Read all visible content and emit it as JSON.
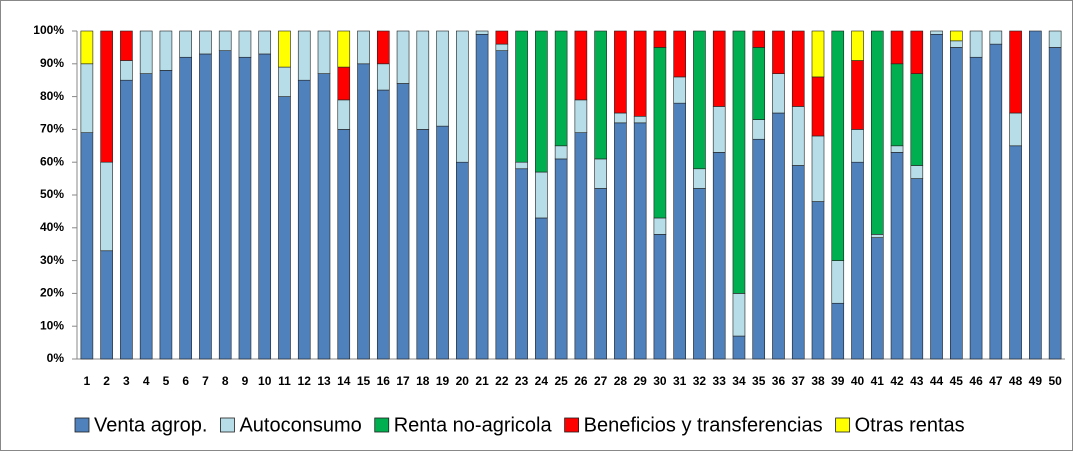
{
  "chart_data": {
    "type": "stacked_bar_100",
    "categories": [
      "1",
      "2",
      "3",
      "4",
      "5",
      "6",
      "7",
      "8",
      "9",
      "10",
      "11",
      "12",
      "13",
      "14",
      "15",
      "16",
      "17",
      "18",
      "19",
      "20",
      "21",
      "22",
      "23",
      "24",
      "25",
      "26",
      "27",
      "28",
      "29",
      "30",
      "31",
      "32",
      "33",
      "34",
      "35",
      "36",
      "37",
      "38",
      "39",
      "40",
      "41",
      "42",
      "43",
      "44",
      "45",
      "46",
      "47",
      "48",
      "49",
      "50"
    ],
    "series": [
      {
        "name": "Venta agrop.",
        "color": "#4f81bd",
        "values": [
          69,
          33,
          85,
          87,
          88,
          92,
          93,
          94,
          92,
          93,
          80,
          85,
          87,
          70,
          90,
          82,
          84,
          70,
          71,
          60,
          99,
          94,
          58,
          43,
          61,
          69,
          52,
          72,
          72,
          38,
          78,
          52,
          63,
          7,
          67,
          75,
          59,
          48,
          17,
          60,
          37,
          63,
          55,
          99,
          95,
          92,
          96,
          65,
          100,
          95
        ]
      },
      {
        "name": "Autoconsumo",
        "color": "#b7dee8",
        "values": [
          21,
          27,
          6,
          13,
          12,
          8,
          7,
          6,
          8,
          7,
          9,
          15,
          13,
          9,
          10,
          8,
          16,
          30,
          29,
          40,
          1,
          2,
          2,
          14,
          4,
          10,
          9,
          3,
          2,
          5,
          8,
          6,
          14,
          13,
          6,
          12,
          18,
          20,
          13,
          10,
          1,
          2,
          4,
          1,
          2,
          8,
          4,
          10,
          0,
          5
        ]
      },
      {
        "name": "Renta no-agricola",
        "color": "#00b050",
        "values": [
          0,
          0,
          0,
          0,
          0,
          0,
          0,
          0,
          0,
          0,
          0,
          0,
          0,
          0,
          0,
          0,
          0,
          0,
          0,
          0,
          0,
          0,
          40,
          43,
          35,
          0,
          39,
          0,
          0,
          52,
          0,
          42,
          0,
          80,
          22,
          0,
          0,
          0,
          70,
          0,
          62,
          25,
          28,
          0,
          0,
          0,
          0,
          0,
          0,
          0
        ]
      },
      {
        "name": "Beneficios y transferencias",
        "color": "#ff0000",
        "values": [
          0,
          40,
          9,
          0,
          0,
          0,
          0,
          0,
          0,
          0,
          0,
          0,
          0,
          10,
          0,
          10,
          0,
          0,
          0,
          0,
          0,
          4,
          0,
          0,
          0,
          21,
          0,
          25,
          26,
          5,
          14,
          0,
          23,
          0,
          5,
          13,
          23,
          18,
          0,
          21,
          0,
          10,
          13,
          0,
          0,
          0,
          0,
          25,
          0,
          0
        ]
      },
      {
        "name": "Otras rentas",
        "color": "#ffff00",
        "values": [
          10,
          0,
          0,
          0,
          0,
          0,
          0,
          0,
          0,
          0,
          11,
          0,
          0,
          11,
          0,
          0,
          0,
          0,
          0,
          0,
          0,
          0,
          0,
          0,
          0,
          0,
          0,
          0,
          0,
          0,
          0,
          0,
          0,
          0,
          0,
          0,
          0,
          14,
          0,
          9,
          0,
          0,
          0,
          0,
          3,
          0,
          0,
          0,
          0,
          0
        ]
      }
    ],
    "ylim": [
      0,
      100
    ],
    "yticks": [
      {
        "value": 0,
        "label": "0%"
      },
      {
        "value": 10,
        "label": "10%"
      },
      {
        "value": 20,
        "label": "20%"
      },
      {
        "value": 30,
        "label": "30%"
      },
      {
        "value": 40,
        "label": "40%"
      },
      {
        "value": 50,
        "label": "50%"
      },
      {
        "value": 60,
        "label": "60%"
      },
      {
        "value": 70,
        "label": "70%"
      },
      {
        "value": 80,
        "label": "80%"
      },
      {
        "value": 90,
        "label": "90%"
      },
      {
        "value": 100,
        "label": "100%"
      }
    ],
    "legend": "bottom"
  }
}
